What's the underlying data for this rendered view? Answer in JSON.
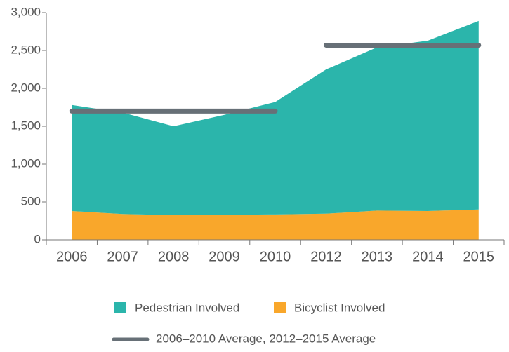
{
  "chart_data": {
    "type": "stacked_area",
    "categories": [
      "2006",
      "2007",
      "2008",
      "2009",
      "2010",
      "2012",
      "2013",
      "2014",
      "2015"
    ],
    "series": [
      {
        "name": "Pedestrian Involved",
        "color": "#2bb5ab",
        "values": [
          1400,
          1340,
          1175,
          1320,
          1485,
          1905,
          2155,
          2250,
          2490
        ]
      },
      {
        "name": "Bicyclist Involved",
        "color": "#f9a72b",
        "values": [
          380,
          340,
          325,
          330,
          335,
          345,
          385,
          380,
          400
        ]
      }
    ],
    "average_lines": {
      "name": "2006–2010 Average, 2012–2015 Average",
      "color": "#677077",
      "segments": [
        [
          1700,
          1700,
          1700,
          1700,
          1700,
          null,
          null,
          null,
          null
        ],
        [
          null,
          null,
          null,
          null,
          null,
          2570,
          2570,
          2570,
          2570
        ]
      ]
    },
    "ylim": [
      0,
      3000
    ],
    "yticks": [
      0,
      {
        "value": 500,
        "label": "500"
      },
      {
        "value": 1000,
        "label": "1,000"
      },
      {
        "value": 1500,
        "label": "1,500"
      },
      {
        "value": 2000,
        "label": "2,000"
      },
      {
        "value": 2500,
        "label": "2,500"
      },
      {
        "value": 3000,
        "label": "3,000"
      }
    ]
  }
}
